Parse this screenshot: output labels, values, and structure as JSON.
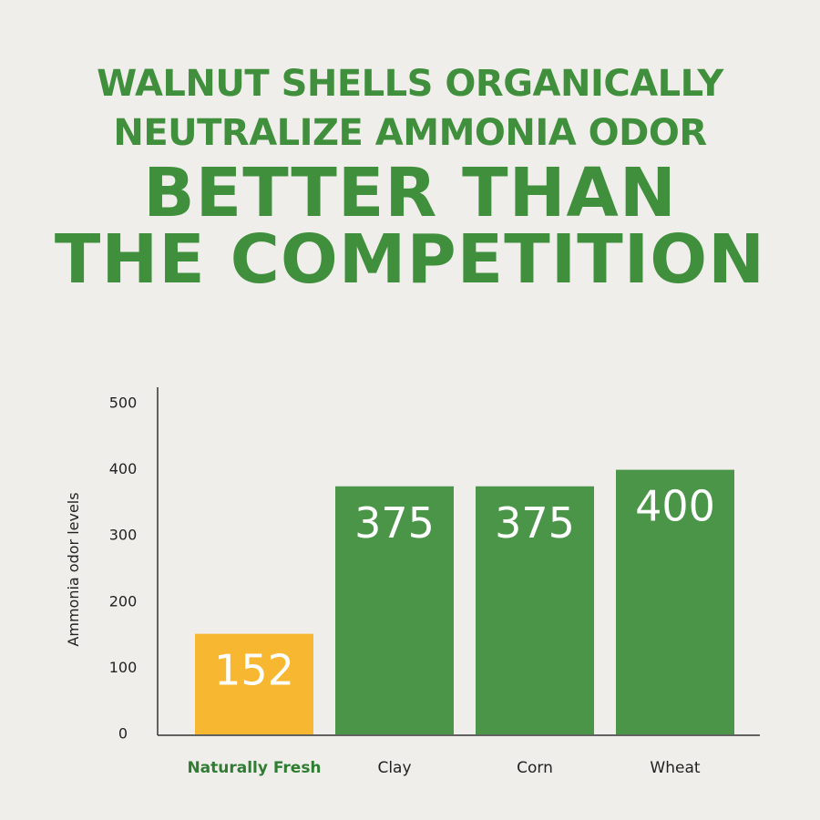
{
  "headline": {
    "line1": "WALNUT SHELLS ORGANICALLY",
    "line2": "NEUTRALIZE AMMONIA ODOR",
    "line3": "BETTER THAN",
    "line4": "THE COMPETITION"
  },
  "colors": {
    "background": "#f0eeea",
    "headline": "#3f8f3c",
    "bar_highlight": "#f7b731",
    "bar_default": "#4a9548",
    "axis": "#333333",
    "highlight_label": "#2f7d32"
  },
  "chart_data": {
    "type": "bar",
    "title": "",
    "xlabel": "",
    "ylabel": "Ammonia odor levels",
    "categories": [
      "Naturally Fresh",
      "Clay",
      "Corn",
      "Wheat"
    ],
    "values": [
      152,
      375,
      375,
      400
    ],
    "data_labels": [
      "152",
      "375",
      "375",
      "400"
    ],
    "yticks": [
      0,
      100,
      200,
      300,
      400,
      500
    ],
    "ylim": [
      0,
      500
    ],
    "highlight_category": "Naturally Fresh",
    "grid": false,
    "legend": "none"
  }
}
